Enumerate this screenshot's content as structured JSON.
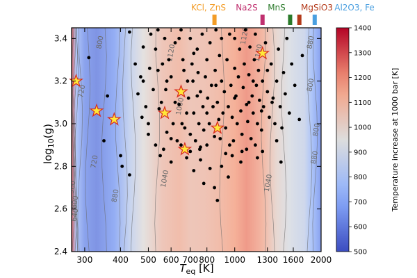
{
  "chart_data": {
    "type": "heatmap",
    "xlabel": "T_eq [K]",
    "ylabel": "log10(g)",
    "x_scale": "log",
    "x_range": [
      270,
      2000
    ],
    "y_range": [
      2.4,
      3.45
    ],
    "x_ticks": [
      300,
      400,
      500,
      600,
      700,
      800,
      1000,
      1300,
      1600,
      2000
    ],
    "x_tick_labels": [
      "300",
      "400",
      "500",
      "600",
      "700",
      "800",
      "1000",
      "1300",
      "1600",
      "2000"
    ],
    "y_ticks": [
      2.4,
      2.6,
      2.8,
      3.0,
      3.2,
      3.4
    ],
    "y_tick_labels": [
      "2.4",
      "2.6",
      "2.8",
      "3.0",
      "3.2",
      "3.4"
    ],
    "colorbar": {
      "label": "Temperature increase at 1000 bar [K]",
      "range": [
        500,
        1400
      ],
      "ticks": [
        500,
        600,
        700,
        800,
        900,
        1000,
        1100,
        1200,
        1300,
        1400
      ],
      "tick_labels": [
        "500",
        "600",
        "700",
        "800",
        "900",
        "1000",
        "1100",
        "1200",
        "1300",
        "1400"
      ],
      "colormap": "coolwarm"
    },
    "heat_profile": [
      [
        270,
        1300
      ],
      [
        280,
        780
      ],
      [
        300,
        650
      ],
      [
        330,
        610
      ],
      [
        380,
        680
      ],
      [
        430,
        850
      ],
      [
        480,
        960
      ],
      [
        560,
        1070
      ],
      [
        640,
        1110
      ],
      [
        700,
        1070
      ],
      [
        780,
        1080
      ],
      [
        880,
        1110
      ],
      [
        1000,
        1160
      ],
      [
        1100,
        1210
      ],
      [
        1250,
        1130
      ],
      [
        1400,
        1000
      ],
      [
        1550,
        930
      ],
      [
        1650,
        900
      ],
      [
        1750,
        880
      ],
      [
        1850,
        770
      ],
      [
        1950,
        680
      ],
      [
        2000,
        640
      ]
    ],
    "contour_labels": [
      {
        "text": "1120",
        "x": 610,
        "y": 3.33
      },
      {
        "text": "1120",
        "x": 1100,
        "y": 3.41
      },
      {
        "text": "1120",
        "x": 1230,
        "y": 3.33
      },
      {
        "text": "1080",
        "x": 655,
        "y": 3.08
      },
      {
        "text": "800",
        "x": 345,
        "y": 3.38
      },
      {
        "text": "720",
        "x": 298,
        "y": 3.15
      },
      {
        "text": "720",
        "x": 330,
        "y": 2.82
      },
      {
        "text": "880",
        "x": 390,
        "y": 2.66
      },
      {
        "text": "1040",
        "x": 580,
        "y": 2.74
      },
      {
        "text": "1040",
        "x": 1330,
        "y": 2.72
      },
      {
        "text": "880",
        "x": 1870,
        "y": 3.38
      },
      {
        "text": "800",
        "x": 1870,
        "y": 3.18
      },
      {
        "text": "800",
        "x": 1960,
        "y": 2.97
      },
      {
        "text": "880",
        "x": 1930,
        "y": 2.84
      },
      {
        "text": "960",
        "x": 276,
        "y": 2.7
      },
      {
        "text": "800",
        "x": 282,
        "y": 2.63
      },
      {
        "text": "640",
        "x": 282,
        "y": 2.57
      }
    ],
    "condensates": [
      {
        "label": "KCl, ZnS",
        "color": "#f39c26",
        "marker_x": 850
      },
      {
        "label": "Na2S",
        "color": "#c0306f",
        "marker_x": 1250
      },
      {
        "label": "MnS",
        "color": "#2a7a2a",
        "marker_x": 1560
      },
      {
        "label": "MgSiO3",
        "color": "#b33a1a",
        "marker_x": 1680
      },
      {
        "label": "Al2O3, Fe",
        "color": "#4a9fe0",
        "marker_x": 1900
      }
    ],
    "stars": [
      {
        "x": 280,
        "y": 3.2
      },
      {
        "x": 330,
        "y": 3.06
      },
      {
        "x": 380,
        "y": 3.02
      },
      {
        "x": 570,
        "y": 3.05
      },
      {
        "x": 650,
        "y": 3.15
      },
      {
        "x": 670,
        "y": 2.88
      },
      {
        "x": 870,
        "y": 2.98
      },
      {
        "x": 1250,
        "y": 3.33
      }
    ],
    "points": [
      [
        310,
        3.31
      ],
      [
        360,
        3.13
      ],
      [
        350,
        2.92
      ],
      [
        400,
        2.85
      ],
      [
        405,
        2.8
      ],
      [
        430,
        2.76
      ],
      [
        430,
        3.43
      ],
      [
        450,
        3.28
      ],
      [
        460,
        3.14
      ],
      [
        470,
        3.22
      ],
      [
        475,
        3.03
      ],
      [
        480,
        3.2
      ],
      [
        490,
        3.08
      ],
      [
        500,
        2.95
      ],
      [
        500,
        3.0
      ],
      [
        505,
        3.26
      ],
      [
        510,
        3.42
      ],
      [
        520,
        3.16
      ],
      [
        530,
        3.35
      ],
      [
        540,
        3.44
      ],
      [
        545,
        3.07
      ],
      [
        550,
        2.85
      ],
      [
        555,
        3.1
      ],
      [
        560,
        3.28
      ],
      [
        565,
        2.88
      ],
      [
        570,
        3.4
      ],
      [
        575,
        3.16
      ],
      [
        580,
        2.96
      ],
      [
        590,
        3.3
      ],
      [
        600,
        2.93
      ],
      [
        600,
        3.22
      ],
      [
        610,
        3.0
      ],
      [
        620,
        3.38
      ],
      [
        630,
        2.92
      ],
      [
        640,
        3.09
      ],
      [
        650,
        3.44
      ],
      [
        655,
        3.0
      ],
      [
        660,
        3.3
      ],
      [
        665,
        3.25
      ],
      [
        670,
        2.98
      ],
      [
        680,
        3.05
      ],
      [
        685,
        3.2
      ],
      [
        690,
        3.12
      ],
      [
        700,
        2.95
      ],
      [
        700,
        3.4
      ],
      [
        710,
        3.28
      ],
      [
        715,
        3.2
      ],
      [
        720,
        3.05
      ],
      [
        730,
        2.92
      ],
      [
        740,
        3.35
      ],
      [
        745,
        3.24
      ],
      [
        750,
        3.0
      ],
      [
        755,
        2.88
      ],
      [
        760,
        3.15
      ],
      [
        770,
        3.42
      ],
      [
        775,
        3.08
      ],
      [
        780,
        2.97
      ],
      [
        790,
        3.22
      ],
      [
        800,
        2.9
      ],
      [
        800,
        3.3
      ],
      [
        805,
        3.12
      ],
      [
        815,
        3.0
      ],
      [
        820,
        3.38
      ],
      [
        830,
        3.18
      ],
      [
        840,
        3.08
      ],
      [
        850,
        2.94
      ],
      [
        855,
        3.25
      ],
      [
        860,
        3.44
      ],
      [
        870,
        3.1
      ],
      [
        880,
        3.02
      ],
      [
        885,
        3.32
      ],
      [
        890,
        2.93
      ],
      [
        900,
        3.2
      ],
      [
        900,
        3.4
      ],
      [
        910,
        3.05
      ],
      [
        920,
        3.15
      ],
      [
        930,
        2.98
      ],
      [
        940,
        3.3
      ],
      [
        950,
        3.08
      ],
      [
        960,
        3.42
      ],
      [
        970,
        3.18
      ],
      [
        980,
        3.03
      ],
      [
        990,
        2.92
      ],
      [
        1000,
        3.26
      ],
      [
        1000,
        3.4
      ],
      [
        1010,
        3.13
      ],
      [
        1020,
        3.0
      ],
      [
        1030,
        3.22
      ],
      [
        1040,
        3.35
      ],
      [
        1050,
        3.06
      ],
      [
        1060,
        2.95
      ],
      [
        1070,
        3.17
      ],
      [
        1080,
        3.28
      ],
      [
        1090,
        3.44
      ],
      [
        1100,
        3.09
      ],
      [
        1110,
        3.01
      ],
      [
        1120,
        3.23
      ],
      [
        1130,
        3.36
      ],
      [
        1140,
        2.93
      ],
      [
        1150,
        3.13
      ],
      [
        1160,
        3.05
      ],
      [
        1170,
        3.3
      ],
      [
        1180,
        3.42
      ],
      [
        1190,
        3.18
      ],
      [
        1200,
        3.0
      ],
      [
        1210,
        3.25
      ],
      [
        1220,
        3.11
      ],
      [
        1240,
        2.97
      ],
      [
        1250,
        3.2
      ],
      [
        1260,
        3.08
      ],
      [
        1280,
        3.38
      ],
      [
        1300,
        3.15
      ],
      [
        1320,
        3.03
      ],
      [
        1340,
        3.28
      ],
      [
        1360,
        3.12
      ],
      [
        1380,
        3.0
      ],
      [
        1400,
        3.2
      ],
      [
        1420,
        3.35
      ],
      [
        1440,
        3.08
      ],
      [
        1460,
        2.98
      ],
      [
        1480,
        3.24
      ],
      [
        1500,
        3.14
      ],
      [
        1520,
        3.4
      ],
      [
        1550,
        3.05
      ],
      [
        1580,
        3.28
      ],
      [
        1620,
        3.18
      ],
      [
        1680,
        3.02
      ],
      [
        1720,
        3.32
      ],
      [
        600,
        2.82
      ],
      [
        680,
        2.84
      ],
      [
        700,
        2.87
      ],
      [
        720,
        2.78
      ],
      [
        760,
        2.83
      ],
      [
        780,
        2.72
      ],
      [
        820,
        2.79
      ],
      [
        850,
        2.7
      ],
      [
        870,
        2.64
      ],
      [
        900,
        2.8
      ],
      [
        930,
        2.86
      ],
      [
        950,
        2.75
      ],
      [
        980,
        2.85
      ],
      [
        1050,
        2.82
      ],
      [
        1100,
        2.88
      ],
      [
        1180,
        2.9
      ],
      [
        1200,
        2.84
      ],
      [
        1250,
        2.87
      ],
      [
        1400,
        2.92
      ],
      [
        1450,
        2.82
      ],
      [
        650,
        2.9
      ],
      [
        760,
        2.89
      ],
      [
        960,
        2.9
      ],
      [
        1060,
        2.87
      ],
      [
        530,
        2.9
      ],
      [
        580,
        3.2
      ],
      [
        620,
        3.1
      ],
      [
        720,
        3.33
      ],
      [
        800,
        3.05
      ],
      [
        1120,
        3.1
      ],
      [
        1300,
        3.25
      ],
      [
        1350,
        3.1
      ],
      [
        480,
        3.36
      ],
      [
        540,
        3.25
      ],
      [
        640,
        3.4
      ],
      [
        740,
        3.13
      ],
      [
        860,
        3.18
      ],
      [
        1000,
        3.12
      ],
      [
        1160,
        3.2
      ],
      [
        1240,
        3.06
      ]
    ]
  }
}
